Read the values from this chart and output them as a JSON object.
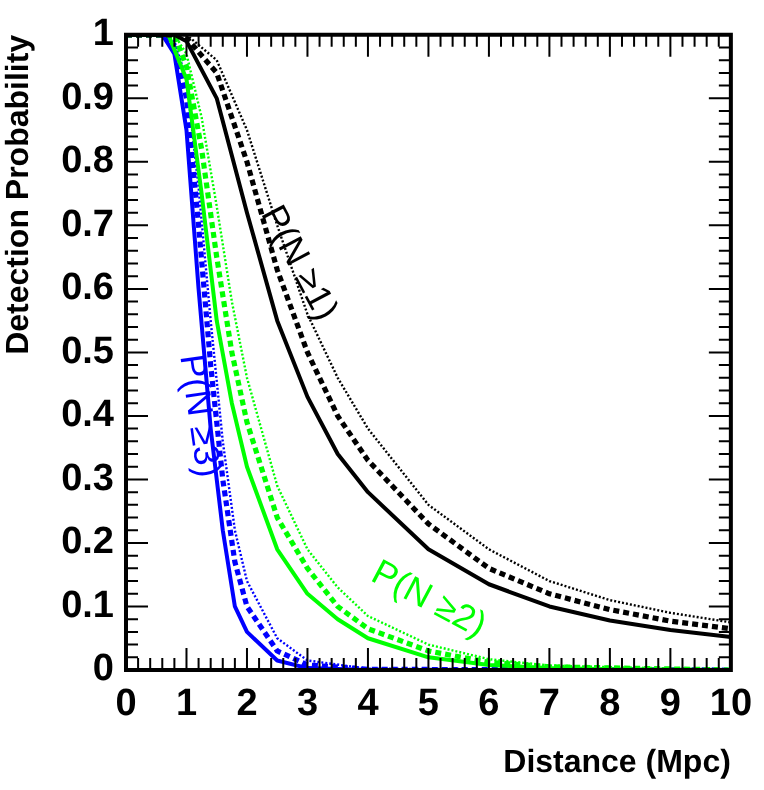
{
  "chart_data": {
    "type": "line",
    "xlabel": "Distance (Mpc)",
    "ylabel": "Detection Probability",
    "xlim": [
      0,
      10
    ],
    "ylim": [
      0,
      1
    ],
    "xticks": [
      0,
      1,
      2,
      3,
      4,
      5,
      6,
      7,
      8,
      9,
      10
    ],
    "yticks": [
      0,
      0.1,
      0.2,
      0.3,
      0.4,
      0.5,
      0.6,
      0.7,
      0.8,
      0.9,
      1
    ],
    "grid": false,
    "legend": false,
    "marker": "none",
    "series": [
      {
        "color": "#000000",
        "line_style": "solid",
        "x": [
          0,
          0.8,
          1,
          1.5,
          2,
          2.5,
          3,
          3.5,
          4,
          5,
          6,
          7,
          8,
          9,
          10
        ],
        "values": [
          1,
          1,
          0.99,
          0.9,
          0.72,
          0.55,
          0.43,
          0.34,
          0.28,
          0.19,
          0.135,
          0.1,
          0.078,
          0.063,
          0.052
        ]
      },
      {
        "color": "#000000",
        "line_style": "dashed",
        "x": [
          0,
          0.9,
          1,
          1.5,
          2,
          2.5,
          3,
          3.5,
          4,
          5,
          6,
          7,
          8,
          9,
          10
        ],
        "values": [
          1,
          1,
          0.995,
          0.94,
          0.8,
          0.63,
          0.5,
          0.4,
          0.33,
          0.23,
          0.16,
          0.12,
          0.095,
          0.077,
          0.065
        ]
      },
      {
        "color": "#000000",
        "line_style": "dotted",
        "x": [
          0,
          1,
          1.5,
          2,
          2.5,
          3,
          3.5,
          4,
          5,
          6,
          7,
          8,
          9,
          10
        ],
        "values": [
          1,
          1,
          0.96,
          0.85,
          0.7,
          0.56,
          0.46,
          0.38,
          0.26,
          0.19,
          0.14,
          0.11,
          0.09,
          0.075
        ]
      },
      {
        "color": "#00ff00",
        "line_style": "solid",
        "x": [
          0,
          0.7,
          1,
          1.25,
          1.5,
          1.75,
          2,
          2.5,
          3,
          3.5,
          4,
          5,
          6,
          7,
          8,
          10
        ],
        "values": [
          1,
          1,
          0.93,
          0.75,
          0.55,
          0.42,
          0.32,
          0.19,
          0.12,
          0.08,
          0.05,
          0.02,
          0.008,
          0.003,
          0.001,
          0
        ]
      },
      {
        "color": "#00ff00",
        "line_style": "dashed",
        "x": [
          0,
          0.8,
          1,
          1.25,
          1.5,
          1.75,
          2,
          2.5,
          3,
          3.5,
          4,
          5,
          6,
          7,
          10
        ],
        "values": [
          1,
          1,
          0.95,
          0.82,
          0.65,
          0.5,
          0.39,
          0.24,
          0.16,
          0.1,
          0.065,
          0.03,
          0.012,
          0.005,
          0
        ]
      },
      {
        "color": "#00ff00",
        "line_style": "dotted",
        "x": [
          0,
          0.8,
          1,
          1.25,
          1.5,
          1.75,
          2,
          2.5,
          3,
          3.5,
          4,
          5,
          6,
          7,
          10
        ],
        "values": [
          1,
          1,
          0.97,
          0.87,
          0.73,
          0.58,
          0.46,
          0.29,
          0.19,
          0.13,
          0.085,
          0.04,
          0.017,
          0.007,
          0
        ]
      },
      {
        "color": "#0000ff",
        "line_style": "solid",
        "x": [
          0,
          0.6,
          0.8,
          1,
          1.2,
          1.4,
          1.6,
          1.8,
          2,
          2.5,
          3,
          4,
          10
        ],
        "values": [
          1,
          1,
          0.97,
          0.85,
          0.6,
          0.38,
          0.22,
          0.1,
          0.06,
          0.015,
          0.003,
          0,
          0
        ]
      },
      {
        "color": "#0000ff",
        "line_style": "dashed",
        "x": [
          0,
          0.6,
          0.8,
          1,
          1.2,
          1.4,
          1.6,
          1.8,
          2,
          2.5,
          3,
          4,
          10
        ],
        "values": [
          1,
          1,
          0.98,
          0.9,
          0.7,
          0.48,
          0.3,
          0.17,
          0.1,
          0.03,
          0.008,
          0.001,
          0
        ]
      },
      {
        "color": "#0000ff",
        "line_style": "dotted",
        "x": [
          0,
          0.6,
          0.8,
          1,
          1.2,
          1.4,
          1.6,
          1.8,
          2,
          2.5,
          3,
          4,
          10
        ],
        "values": [
          1,
          1,
          0.99,
          0.93,
          0.76,
          0.55,
          0.36,
          0.22,
          0.14,
          0.05,
          0.015,
          0.002,
          0
        ]
      }
    ],
    "annotations": [
      "P(N ≥1)",
      "P(N ≥2)",
      "P(N ≥3)"
    ]
  }
}
